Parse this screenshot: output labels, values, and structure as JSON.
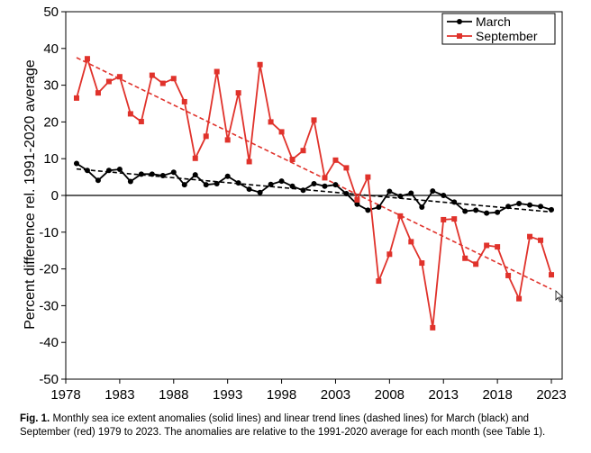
{
  "chart_data": {
    "type": "line",
    "ylabel": "Percent difference rel. 1991-2020 average",
    "xlabel": "",
    "xlim": [
      1978,
      2024
    ],
    "ylim": [
      -50,
      50
    ],
    "xticks": [
      1978,
      1983,
      1988,
      1993,
      1998,
      2003,
      2008,
      2013,
      2018,
      2023
    ],
    "yticks": [
      -50,
      -40,
      -30,
      -20,
      -10,
      0,
      10,
      20,
      30,
      40,
      50
    ],
    "x": [
      1979,
      1980,
      1981,
      1982,
      1983,
      1984,
      1985,
      1986,
      1987,
      1988,
      1989,
      1990,
      1991,
      1992,
      1993,
      1994,
      1995,
      1996,
      1997,
      1998,
      1999,
      2000,
      2001,
      2002,
      2003,
      2004,
      2005,
      2006,
      2007,
      2008,
      2009,
      2010,
      2011,
      2012,
      2013,
      2014,
      2015,
      2016,
      2017,
      2018,
      2019,
      2020,
      2021,
      2022,
      2023
    ],
    "series": [
      {
        "name": "March",
        "color": "#000000",
        "marker": "circle",
        "values": [
          8.7,
          6.8,
          4.1,
          6.8,
          7.1,
          3.8,
          5.8,
          5.8,
          5.4,
          6.3,
          2.9,
          5.6,
          2.9,
          3.2,
          5.2,
          3.4,
          1.7,
          0.8,
          3.0,
          3.9,
          2.5,
          1.4,
          3.2,
          2.5,
          2.9,
          0.5,
          -2.4,
          -4.0,
          -3.2,
          1.1,
          -0.2,
          0.6,
          -3.2,
          1.2,
          0.0,
          -1.8,
          -4.3,
          -4.0,
          -4.8,
          -4.6,
          -3.0,
          -2.2,
          -2.6,
          -3.0,
          -3.9
        ]
      },
      {
        "name": "September",
        "color": "#e0322b",
        "marker": "square",
        "values": [
          26.5,
          37.2,
          27.9,
          31.0,
          32.3,
          22.2,
          20.1,
          32.7,
          30.5,
          31.8,
          25.5,
          10.1,
          16.1,
          33.7,
          15.1,
          27.9,
          9.2,
          35.6,
          20.0,
          17.3,
          9.8,
          12.2,
          20.5,
          4.8,
          9.6,
          7.5,
          -1.2,
          5.0,
          -23.3,
          -16.0,
          -5.6,
          -12.6,
          -18.4,
          -36.0,
          -6.6,
          -6.4,
          -17.1,
          -18.7,
          -13.6,
          -14.0,
          -21.8,
          -28.1,
          -11.2,
          -12.2,
          -21.6
        ]
      }
    ],
    "trend_lines": [
      {
        "name": "March trend",
        "color": "#000000",
        "x": [
          1979,
          2023
        ],
        "y": [
          7.2,
          -4.5
        ]
      },
      {
        "name": "September trend",
        "color": "#e0322b",
        "x": [
          1979,
          2023
        ],
        "y": [
          37.5,
          -25.5
        ]
      }
    ],
    "legend": {
      "position": "top-right"
    }
  },
  "caption": {
    "label": "Fig. 1.",
    "text": "Monthly sea ice extent anomalies (solid lines) and linear trend lines (dashed lines) for March (black) and September (red) 1979 to 2023. The anomalies are relative to the 1991-2020 average for each month (see Table 1)."
  }
}
